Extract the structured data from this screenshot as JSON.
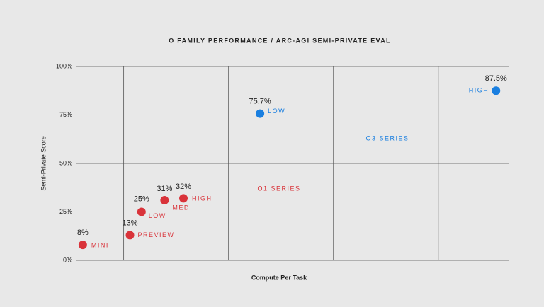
{
  "chart_data": {
    "type": "scatter",
    "title": "O FAMILY PERFORMANCE / ARC-AGI SEMI-PRIVATE EVAL",
    "x_label": "Compute Per Task",
    "y_label": "Semi-Private Score",
    "xlim": [
      -0.45,
      3.67
    ],
    "xgrid": [
      0,
      1,
      2,
      3
    ],
    "ylim": [
      0,
      100
    ],
    "yticks": [
      {
        "value": 0,
        "label": "0%"
      },
      {
        "value": 25,
        "label": "25%"
      },
      {
        "value": 50,
        "label": "50%"
      },
      {
        "value": 75,
        "label": "75%"
      },
      {
        "value": 100,
        "label": "100%"
      }
    ],
    "grid": true,
    "series": [
      {
        "name": "O1 SERIES",
        "color": "#d9333a",
        "x": [
          -0.39,
          0.06,
          0.17,
          0.39,
          0.57
        ],
        "values": [
          8,
          13,
          25,
          31,
          32
        ],
        "value_labels": [
          "8%",
          "13%",
          "25%",
          "31%",
          "32%"
        ],
        "point_names": [
          "MINI",
          "PREVIEW",
          "LOW",
          "MED",
          "HIGH"
        ]
      },
      {
        "name": "O3 SERIES",
        "color": "#1a7fe0",
        "x": [
          1.3,
          3.55
        ],
        "values": [
          75.7,
          87.5
        ],
        "value_labels": [
          "75.7%",
          "87.5%"
        ],
        "point_names": [
          "LOW",
          "HIGH"
        ]
      }
    ]
  }
}
